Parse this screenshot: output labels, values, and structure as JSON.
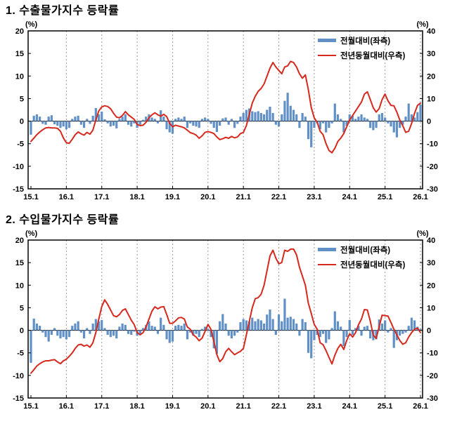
{
  "page": {
    "background": "#ffffff",
    "text_color": "#000000"
  },
  "sections": [
    {
      "heading": "1. 수출물가지수 등락률"
    },
    {
      "heading": "2. 수입물가지수 등락률"
    }
  ],
  "chart_data": [
    {
      "type": "bar",
      "combo": "bar+line",
      "title": "수출물가지수 등락률",
      "x_tick_labels": [
        "15.1",
        "16.1",
        "17.1",
        "18.1",
        "19.1",
        "20.1",
        "21.1",
        "22.1",
        "23.1",
        "24.1",
        "25.1",
        "26.1"
      ],
      "points_per_series": 133,
      "left_axis": {
        "unit": "(%)",
        "max": 20,
        "min": -15,
        "ticks": [
          20,
          15,
          10,
          5,
          0,
          -5,
          -10,
          -15
        ]
      },
      "right_axis": {
        "unit": "(%)",
        "max": 40,
        "min": -30,
        "ticks": [
          40,
          30,
          20,
          10,
          0,
          -10,
          -20,
          -30
        ]
      },
      "grid": "vertical dashed lines at each yearly tick",
      "legend_position": "top-right inside plot",
      "colors": {
        "bar": "#6190c7",
        "line": "#d7281d",
        "grid": "#9a9a9a",
        "axis": "#000000"
      },
      "series": [
        {
          "name": "전월대비(좌측)",
          "type": "bar",
          "axis": "left",
          "color": "#6190c7",
          "values": [
            -3.0,
            1.2,
            1.5,
            1.0,
            -0.6,
            -0.8,
            1.0,
            1.3,
            -0.7,
            -1.0,
            -1.5,
            -1.2,
            -1.8,
            -1.5,
            0.5,
            1.0,
            1.2,
            -0.8,
            -1.5,
            0.5,
            -0.6,
            1.2,
            2.9,
            1.5,
            2.1,
            0.4,
            -0.5,
            -1.2,
            -1.0,
            -1.6,
            0.5,
            1.0,
            1.5,
            -0.8,
            -1.2,
            -0.5,
            -1.5,
            -0.8,
            0.3,
            1.0,
            1.5,
            0.8,
            0.5,
            -0.5,
            2.4,
            1.0,
            -1.8,
            -2.5,
            -2.8,
            0.5,
            0.8,
            0.5,
            1.0,
            -1.5,
            -0.5,
            -1.0,
            -1.2,
            -1.5,
            0.5,
            0.8,
            0.5,
            -0.6,
            -1.5,
            -2.4,
            -1.0,
            0.6,
            0.8,
            -0.8,
            0.5,
            -1.5,
            -0.6,
            1.0,
            1.8,
            2.5,
            2.8,
            2.2,
            2.0,
            2.2,
            1.8,
            1.5,
            2.5,
            3.2,
            1.8,
            -0.8,
            -1.2,
            1.5,
            4.5,
            6.3,
            3.4,
            2.5,
            1.5,
            -1.5,
            1.8,
            1.0,
            -4.0,
            -5.8,
            -1.5,
            -0.5,
            -1.8,
            -0.5,
            -2.5,
            -1.5,
            -0.5,
            3.9,
            1.5,
            0.5,
            -2.5,
            -1.0,
            1.5,
            1.2,
            0.5,
            1.0,
            1.5,
            0.8,
            0.5,
            -1.5,
            -2.0,
            -1.5,
            1.5,
            1.8,
            0.8,
            -0.5,
            -1.2,
            -2.5,
            -3.6,
            -1.5,
            -0.8,
            1.0,
            3.9,
            1.5,
            0.8,
            2.0,
            3.7
          ]
        },
        {
          "name": "전년동월대비(우측)",
          "type": "line",
          "axis": "right",
          "color": "#d7281d",
          "values": [
            -9.0,
            -7.5,
            -6.0,
            -4.8,
            -3.8,
            -3.0,
            -2.8,
            -3.0,
            -3.0,
            -3.2,
            -4.5,
            -7.5,
            -9.6,
            -9.8,
            -8.0,
            -6.0,
            -4.8,
            -5.6,
            -6.2,
            -5.0,
            -5.8,
            -4.0,
            0.5,
            4.5,
            6.3,
            6.8,
            6.5,
            5.5,
            3.5,
            1.8,
            1.5,
            2.5,
            4.2,
            2.8,
            1.8,
            0.8,
            -1.5,
            -2.0,
            -1.8,
            -0.5,
            1.5,
            2.8,
            3.7,
            2.8,
            2.2,
            3.0,
            2.0,
            -1.0,
            -2.5,
            -1.8,
            -2.2,
            -2.5,
            -3.0,
            -4.0,
            -5.1,
            -5.5,
            -6.2,
            -7.6,
            -6.5,
            -5.0,
            -4.6,
            -5.0,
            -5.5,
            -7.0,
            -8.2,
            -7.8,
            -7.2,
            -7.6,
            -6.8,
            -7.4,
            -7.0,
            -5.5,
            -5.0,
            -2.0,
            3.0,
            8.0,
            11.0,
            13.2,
            14.5,
            16.5,
            20.0,
            23.5,
            26.0,
            24.0,
            22.5,
            21.0,
            24.0,
            24.5,
            26.5,
            26.0,
            24.0,
            21.0,
            19.0,
            20.5,
            14.0,
            6.0,
            1.5,
            -0.5,
            -4.5,
            -6.0,
            -10.0,
            -13.0,
            -14.0,
            -12.0,
            -9.0,
            -7.5,
            -5.5,
            -2.5,
            0.5,
            2.5,
            4.5,
            6.5,
            8.5,
            12.0,
            13.0,
            9.5,
            6.0,
            4.0,
            5.5,
            9.5,
            12.0,
            9.0,
            7.0,
            6.8,
            4.0,
            0.5,
            -2.0,
            -5.0,
            -4.5,
            -1.0,
            3.5,
            7.0,
            8.0
          ]
        }
      ]
    },
    {
      "type": "bar",
      "combo": "bar+line",
      "title": "수입물가지수 등락률",
      "x_tick_labels": [
        "15.1",
        "16.1",
        "17.1",
        "18.1",
        "19.1",
        "20.1",
        "21.1",
        "22.1",
        "23.1",
        "24.1",
        "25.1",
        "26.1"
      ],
      "points_per_series": 133,
      "left_axis": {
        "unit": "(%)",
        "max": 20,
        "min": -15,
        "ticks": [
          20,
          15,
          10,
          5,
          0,
          -5,
          -10,
          -15
        ]
      },
      "right_axis": {
        "unit": "(%)",
        "max": 40,
        "min": -30,
        "ticks": [
          40,
          30,
          20,
          10,
          0,
          -10,
          -20,
          -30
        ]
      },
      "grid": "vertical dashed lines at each yearly tick",
      "legend_position": "top-right inside plot",
      "colors": {
        "bar": "#6190c7",
        "line": "#d7281d",
        "grid": "#9a9a9a",
        "axis": "#000000"
      },
      "series": [
        {
          "name": "전월대비(좌측)",
          "type": "bar",
          "axis": "left",
          "color": "#6190c7",
          "values": [
            -7.2,
            2.6,
            1.5,
            1.0,
            -0.5,
            -1.5,
            -2.5,
            -1.0,
            0.5,
            -1.2,
            -1.8,
            -1.5,
            -2.0,
            -1.5,
            1.0,
            1.5,
            2.0,
            -0.5,
            -1.8,
            0.5,
            -0.8,
            1.5,
            2.5,
            2.0,
            2.3,
            0.5,
            -1.0,
            -1.5,
            -1.2,
            -1.8,
            0.8,
            1.5,
            1.2,
            -0.8,
            -1.0,
            -0.3,
            -1.2,
            -0.8,
            0.5,
            1.2,
            2.0,
            1.0,
            0.8,
            -0.8,
            2.8,
            1.2,
            -2.0,
            -2.8,
            -2.5,
            1.0,
            1.2,
            1.0,
            1.5,
            -2.0,
            -0.5,
            -1.2,
            -0.8,
            -1.5,
            0.3,
            0.8,
            0.3,
            -1.5,
            -4.0,
            -5.2,
            2.0,
            3.6,
            1.5,
            -1.2,
            -1.8,
            -1.2,
            -0.5,
            1.8,
            2.5,
            2.2,
            2.0,
            2.8,
            2.0,
            2.5,
            2.2,
            1.5,
            3.5,
            4.6,
            2.5,
            -1.0,
            3.5,
            2.0,
            7.0,
            2.8,
            3.0,
            2.5,
            1.5,
            -1.2,
            2.5,
            1.8,
            -5.0,
            -6.2,
            -2.2,
            -1.0,
            -1.5,
            -0.8,
            -2.8,
            -2.0,
            0.5,
            4.2,
            2.0,
            0.8,
            -3.5,
            -1.5,
            2.3,
            -1.0,
            0.5,
            1.0,
            -1.2,
            0.8,
            1.0,
            -1.8,
            -2.2,
            -2.0,
            2.4,
            1.5,
            2.2,
            -0.5,
            0.5,
            -3.9,
            -2.2,
            -1.2,
            -0.8,
            -0.5,
            1.0,
            2.8,
            2.2,
            0.8,
            0.3
          ]
        },
        {
          "name": "전년동월대비(우측)",
          "type": "line",
          "axis": "right",
          "color": "#d7281d",
          "values": [
            -19.0,
            -17.5,
            -15.8,
            -14.8,
            -14.0,
            -13.5,
            -13.5,
            -13.2,
            -13.0,
            -14.0,
            -14.8,
            -13.5,
            -12.8,
            -11.5,
            -10.0,
            -8.0,
            -6.5,
            -6.2,
            -7.0,
            -6.5,
            -7.5,
            -5.5,
            -1.0,
            5.0,
            10.5,
            13.5,
            11.5,
            9.0,
            6.5,
            6.0,
            7.0,
            8.8,
            9.5,
            7.0,
            4.5,
            2.5,
            -1.0,
            -2.0,
            -1.0,
            1.5,
            5.0,
            8.5,
            10.4,
            9.5,
            10.3,
            10.5,
            7.0,
            3.1,
            3.1,
            4.2,
            5.5,
            5.7,
            5.0,
            1.5,
            0.5,
            -2.0,
            -3.0,
            -4.6,
            -3.5,
            -0.5,
            2.6,
            0.5,
            -5.0,
            -10.8,
            -13.9,
            -12.5,
            -9.5,
            -8.0,
            -9.5,
            -10.8,
            -10.0,
            -9.3,
            -8.0,
            -2.0,
            4.0,
            10.0,
            14.0,
            14.5,
            16.0,
            20.0,
            26.5,
            33.0,
            35.5,
            32.0,
            29.5,
            30.0,
            35.5,
            35.0,
            36.0,
            36.0,
            33.5,
            28.0,
            24.0,
            20.0,
            12.0,
            7.5,
            2.6,
            0.5,
            -5.5,
            -6.4,
            -9.0,
            -12.0,
            -14.9,
            -11.0,
            -8.0,
            -6.2,
            -8.5,
            -4.5,
            -1.5,
            -3.0,
            -1.0,
            2.5,
            5.0,
            9.2,
            9.0,
            4.0,
            -2.2,
            -3.6,
            1.5,
            6.7,
            6.5,
            6.3,
            3.5,
            0.5,
            -2.0,
            -4.5,
            -6.2,
            -5.5,
            -3.0,
            -1.0,
            0.5,
            1.0,
            -1.0
          ]
        }
      ]
    }
  ]
}
